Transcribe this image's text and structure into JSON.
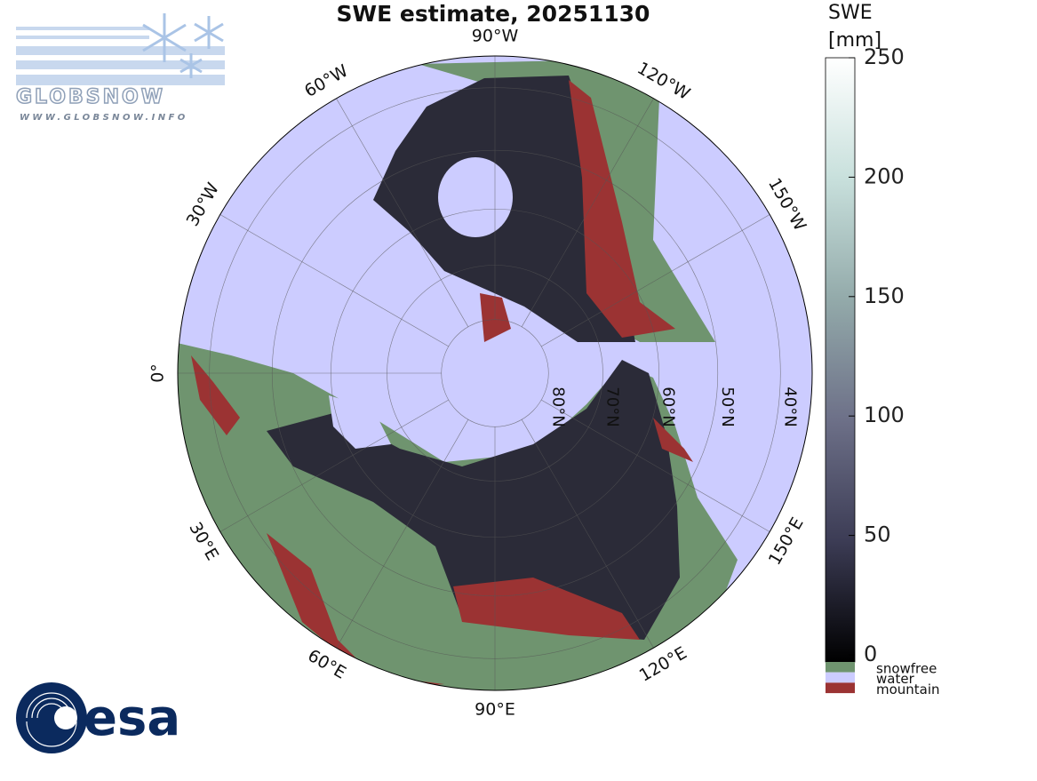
{
  "title": "SWE estimate, 20251130",
  "map": {
    "longitudes": [
      {
        "value": -90,
        "label": "90°W"
      },
      {
        "value": -120,
        "label": "120°W"
      },
      {
        "value": -150,
        "label": "150°W"
      },
      {
        "value": -60,
        "label": "60°W"
      },
      {
        "value": -30,
        "label": "30°W"
      },
      {
        "value": 0,
        "label": "0°"
      },
      {
        "value": 30,
        "label": "30°E"
      },
      {
        "value": 60,
        "label": "60°E"
      },
      {
        "value": 90,
        "label": "90°E"
      },
      {
        "value": 120,
        "label": "120°E"
      },
      {
        "value": 150,
        "label": "150°E"
      }
    ],
    "latitudes": [
      {
        "value": 80,
        "label": "80°N"
      },
      {
        "value": 70,
        "label": "70°N"
      },
      {
        "value": 60,
        "label": "60°N"
      },
      {
        "value": 50,
        "label": "50°N"
      },
      {
        "value": 40,
        "label": "40°N"
      }
    ]
  },
  "colorbar": {
    "label": [
      "SWE",
      "[mm]"
    ],
    "lim": [
      0,
      250
    ],
    "ticks": [
      0,
      50,
      100,
      150,
      200,
      250
    ],
    "colormap": [
      "#000000",
      "#3c3c55",
      "#6d7088",
      "#93aaaa",
      "#c8e0dc",
      "#ffffff"
    ]
  },
  "legend": [
    {
      "name": "snowfree",
      "color": "#6f946f"
    },
    {
      "name": "water",
      "color": "#ccccff"
    },
    {
      "name": "mountain",
      "color": "#9b3333"
    }
  ],
  "logos": {
    "globsnow": "GLOBSNOW",
    "url": "WWW.GLOBSNOW.INFO",
    "esa": "esa"
  }
}
